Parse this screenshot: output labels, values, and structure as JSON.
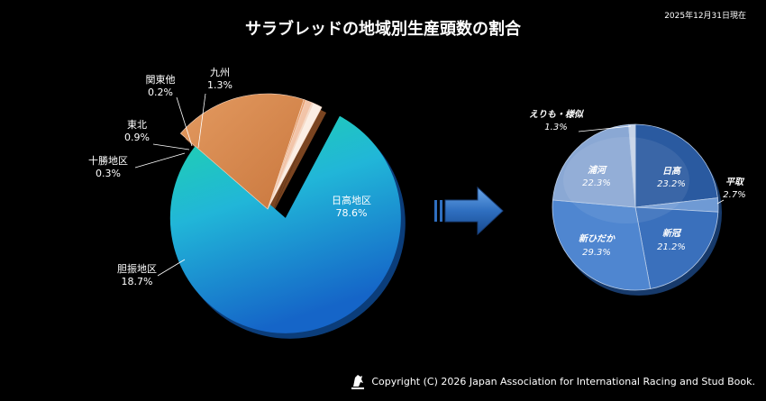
{
  "header": {
    "title": "サラブレッドの地域別生産頭数の割合",
    "date_note": "2025年12月31日現在"
  },
  "footer": {
    "copyright": "Copyright (C) 2026 Japan Association for International Racing and Stud Book."
  },
  "colors": {
    "background": "#000000",
    "hidaka_gradient_start": "#1fd6a8",
    "hidaka_gradient_end": "#1565c8",
    "iburi": "#d98a4e",
    "tokachi": "#e8a070",
    "tohoku": "#f2c4a8",
    "kanto": "#f6dccb",
    "kyushu": "#fbeee4",
    "arrow": "#2f6fc0"
  },
  "chart_data": [
    {
      "type": "pie",
      "title": "サラブレッドの地域別生産頭数の割合",
      "unit": "%",
      "slices": [
        {
          "label": "日高地区",
          "value": 78.6,
          "value_label": "78.6%"
        },
        {
          "label": "胆振地区",
          "value": 18.7,
          "value_label": "18.7%"
        },
        {
          "label": "十勝地区",
          "value": 0.3,
          "value_label": "0.3%"
        },
        {
          "label": "東北",
          "value": 0.9,
          "value_label": "0.9%"
        },
        {
          "label": "関東他",
          "value": 0.2,
          "value_label": "0.2%"
        },
        {
          "label": "九州",
          "value": 1.3,
          "value_label": "1.3%"
        }
      ],
      "exploded": "日高地区"
    },
    {
      "type": "pie",
      "breakdown_of": "日高地区",
      "unit": "%",
      "slices": [
        {
          "label": "日高",
          "value": 23.2,
          "value_label": "23.2%"
        },
        {
          "label": "平取",
          "value": 2.7,
          "value_label": "2.7%"
        },
        {
          "label": "新冠",
          "value": 21.2,
          "value_label": "21.2%"
        },
        {
          "label": "新ひだか",
          "value": 29.3,
          "value_label": "29.3%"
        },
        {
          "label": "浦河",
          "value": 22.3,
          "value_label": "22.3%"
        },
        {
          "label": "えりも・様似",
          "value": 1.3,
          "value_label": "1.3%"
        }
      ]
    }
  ]
}
